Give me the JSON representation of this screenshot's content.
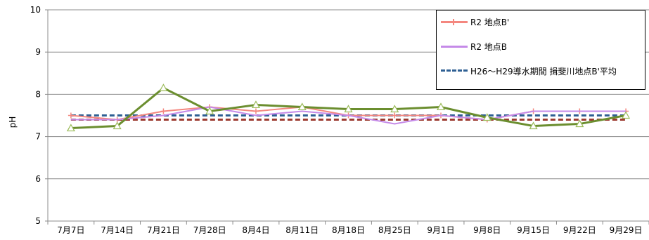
{
  "chart_data": {
    "type": "line",
    "categories": [
      "7月7日",
      "7月14日",
      "7月21日",
      "7月28日",
      "8月4日",
      "8月11日",
      "8月18日",
      "8月25日",
      "9月1日",
      "9月8日",
      "9月15日",
      "9月22日",
      "9月29日"
    ],
    "ylabel": "pH",
    "ylim": [
      5,
      10
    ],
    "yticks": [
      5,
      6,
      7,
      8,
      9,
      10
    ],
    "grid": true,
    "legend_position": "top-right",
    "series": [
      {
        "name": "R2  地点B'",
        "color": "#f4877f",
        "style": "solid-plus",
        "values": [
          7.5,
          7.4,
          7.6,
          7.7,
          7.6,
          7.7,
          7.5,
          7.5,
          7.5,
          7.4,
          7.6,
          7.6,
          7.6
        ]
      },
      {
        "name": "R2  地点B",
        "color": "#c58ae8",
        "style": "solid",
        "values": [
          7.4,
          7.4,
          7.5,
          7.7,
          7.5,
          7.6,
          7.5,
          7.3,
          7.5,
          7.4,
          7.6,
          7.6,
          7.6
        ]
      },
      {
        "name": "H26～H29導水期間  揖斐川地点B'平均",
        "color": "#2e5f93",
        "style": "dashed",
        "values": [
          7.5,
          7.5,
          7.5,
          7.5,
          7.5,
          7.5,
          7.5,
          7.5,
          7.5,
          7.5,
          7.5,
          7.5,
          7.5
        ]
      },
      {
        "color": "#9c3a30",
        "style": "dashed",
        "values": [
          7.4,
          7.4,
          7.4,
          7.4,
          7.4,
          7.4,
          7.4,
          7.4,
          7.4,
          7.4,
          7.4,
          7.4,
          7.4
        ]
      },
      {
        "color": "#6b8e2f",
        "style": "solid-triangle",
        "values": [
          7.2,
          7.25,
          8.15,
          7.6,
          7.75,
          7.7,
          7.65,
          7.65,
          7.7,
          7.45,
          7.25,
          7.3,
          7.5
        ]
      }
    ]
  }
}
